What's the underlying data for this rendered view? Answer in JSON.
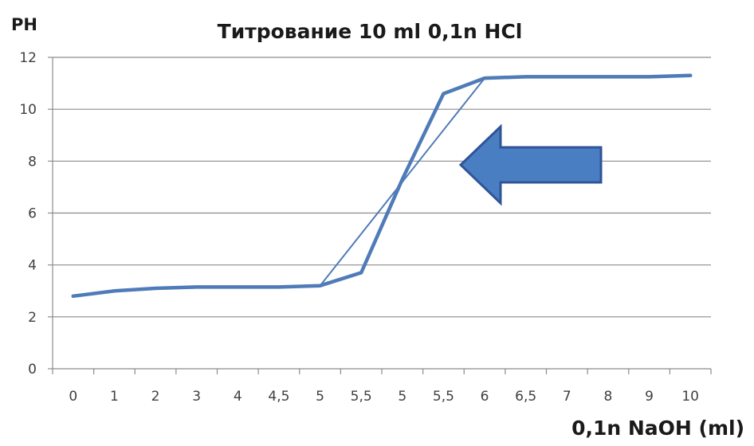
{
  "chart_data": {
    "type": "line",
    "title": "Титрование 10 ml 0,1n HCl",
    "ylabel": "PH",
    "xlabel": "0,1n NaOH (ml)",
    "categories": [
      "0",
      "1",
      "2",
      "3",
      "4",
      "4,5",
      "5",
      "5,5",
      "5",
      "5,5",
      "6",
      "6,5",
      "7",
      "8",
      "9",
      "10"
    ],
    "ylim": [
      0,
      12
    ],
    "yticks": [
      0,
      2,
      4,
      6,
      8,
      10,
      12
    ],
    "grid": true,
    "legend": "none",
    "series": [
      {
        "values": [
          2.8,
          3.0,
          3.1,
          3.15,
          3.15,
          3.15,
          3.2,
          3.7,
          7.3,
          10.6,
          11.2,
          11.25,
          11.25,
          11.25,
          11.25,
          11.3
        ],
        "color": "#4f7bb8",
        "stroke": "thick"
      },
      {
        "values": [
          null,
          null,
          null,
          null,
          null,
          null,
          3.2,
          null,
          null,
          null,
          11.2,
          null,
          null,
          null,
          null,
          null
        ],
        "color": "#4f7bb8",
        "stroke": "thin"
      }
    ],
    "annotation": {
      "shape": "arrow-left",
      "fill": "#4a7ec2",
      "stroke": "#2f5597"
    }
  }
}
